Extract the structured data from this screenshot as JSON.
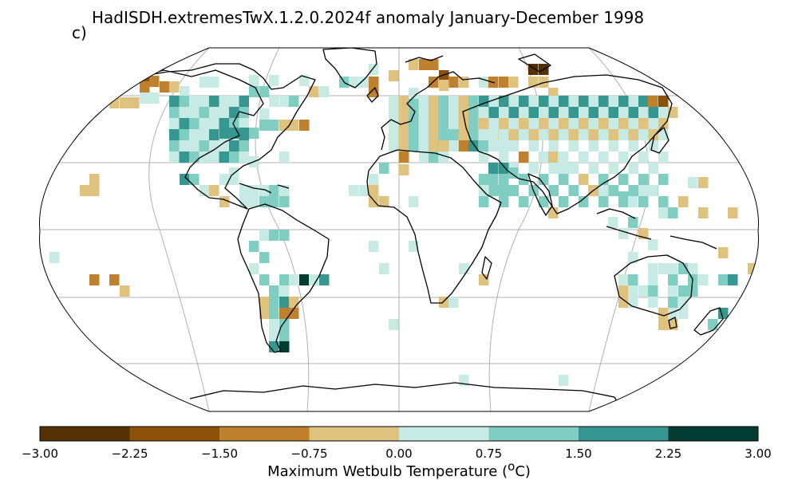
{
  "title": "HadISDH.extremesTwX.1.2.0.2024f anomaly January-December 1998",
  "panel_label": "c)",
  "map": {
    "projection": "Robinson",
    "graticule": true,
    "colormap": "BrBG (brown-white-teal)"
  },
  "colorbar": {
    "label": "Maximum Wetbulb Temperature (",
    "label_superscript": "o",
    "label_suffix": "C)",
    "ticks": [
      "−3.00",
      "−2.25",
      "−1.50",
      "−0.75",
      "0.00",
      "0.75",
      "1.50",
      "2.25",
      "3.00"
    ],
    "bins": [
      {
        "from": -3.0,
        "to": -2.25,
        "color": "#543005"
      },
      {
        "from": -2.25,
        "to": -1.5,
        "color": "#8c510a"
      },
      {
        "from": -1.5,
        "to": -0.75,
        "color": "#bf812d"
      },
      {
        "from": -0.75,
        "to": 0.0,
        "color": "#dfc27d"
      },
      {
        "from": 0.0,
        "to": 0.75,
        "color": "#c7eae5"
      },
      {
        "from": 0.75,
        "to": 1.5,
        "color": "#80cdc1"
      },
      {
        "from": 1.5,
        "to": 2.25,
        "color": "#35978f"
      },
      {
        "from": 2.25,
        "to": 3.0,
        "color": "#003c30"
      }
    ]
  }
}
